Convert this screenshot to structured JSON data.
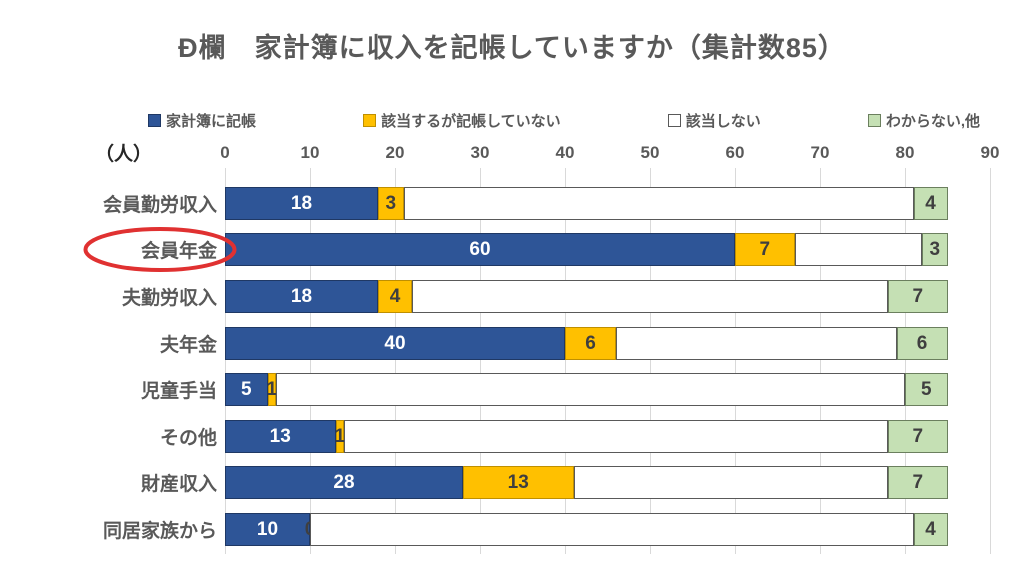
{
  "chart_data": {
    "type": "bar",
    "orientation": "horizontal",
    "stacked": true,
    "title": "Đ欄　家計簿に収入を記帳していますか（集計数85）",
    "unit_label": "（人）",
    "total_per_category": 85,
    "categories": [
      "会員勤労収入",
      "会員年金",
      "夫勤労収入",
      "夫年金",
      "児童手当",
      "その他",
      "財産収入",
      "同居家族から"
    ],
    "highlighted_category": "会員年金",
    "series": [
      {
        "name": "家計簿に記帳",
        "color": "#2E5597",
        "border": "#1F3864",
        "label_color": "#FFFFFF",
        "show_labels": true,
        "values": [
          18,
          60,
          18,
          40,
          5,
          13,
          28,
          10
        ]
      },
      {
        "name": "該当するが記帳していない",
        "color": "#FFC000",
        "border": "#BF8F00",
        "label_color": "#3F3F3F",
        "show_labels": true,
        "values": [
          3,
          7,
          4,
          6,
          1,
          1,
          13,
          0
        ]
      },
      {
        "name": "該当しない",
        "color": "#FFFFFF",
        "border": "#595959",
        "label_color": "#3F3F3F",
        "show_labels": false,
        "values": [
          60,
          15,
          56,
          33,
          74,
          64,
          37,
          71
        ]
      },
      {
        "name": "わからない,他",
        "color": "#C5E0B4",
        "border": "#6B7F5E",
        "label_color": "#3F3F3F",
        "show_labels": true,
        "values": [
          4,
          3,
          7,
          6,
          5,
          7,
          7,
          4
        ]
      }
    ],
    "xlim": [
      0,
      90
    ],
    "xticks": [
      0,
      10,
      20,
      30,
      40,
      50,
      60,
      70,
      80,
      90
    ],
    "legend_position": "top",
    "grid": "vertical",
    "annotation": {
      "shape": "ellipse",
      "color": "#E03131",
      "target": "会員年金"
    }
  }
}
